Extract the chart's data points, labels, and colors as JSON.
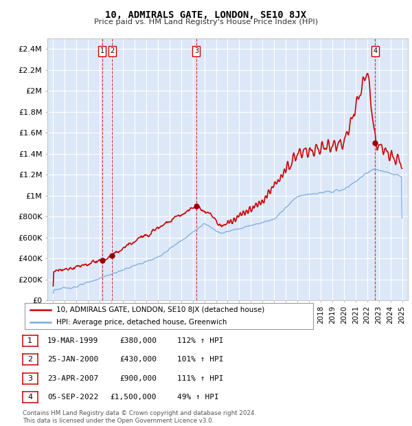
{
  "title": "10, ADMIRALS GATE, LONDON, SE10 8JX",
  "subtitle": "Price paid vs. HM Land Registry's House Price Index (HPI)",
  "footer": "Contains HM Land Registry data © Crown copyright and database right 2024.\nThis data is licensed under the Open Government Licence v3.0.",
  "legend_red": "10, ADMIRALS GATE, LONDON, SE10 8JX (detached house)",
  "legend_blue": "HPI: Average price, detached house, Greenwich",
  "transactions": [
    {
      "num": 1,
      "date": "19-MAR-1999",
      "price": "£380,000",
      "hpi_pct": "112%",
      "arrow": "↑"
    },
    {
      "num": 2,
      "date": "25-JAN-2000",
      "price": "£430,000",
      "hpi_pct": "101%",
      "arrow": "↑"
    },
    {
      "num": 3,
      "date": "23-APR-2007",
      "price": "£900,000",
      "hpi_pct": "111%",
      "arrow": "↑"
    },
    {
      "num": 4,
      "date": "05-SEP-2022",
      "price": "£1,500,000",
      "hpi_pct": "49%",
      "arrow": "↑"
    }
  ],
  "transaction_years": [
    1999.21,
    2000.07,
    2007.31,
    2022.68
  ],
  "transaction_prices_k": [
    380,
    430,
    900,
    1500
  ],
  "yticks_k": [
    0,
    200,
    400,
    600,
    800,
    1000,
    1200,
    1400,
    1600,
    1800,
    2000,
    2200,
    2400
  ],
  "ytick_labels": [
    "£0",
    "£200K",
    "£400K",
    "£600K",
    "£800K",
    "£1M",
    "£1.2M",
    "£1.4M",
    "£1.6M",
    "£1.8M",
    "£2M",
    "£2.2M",
    "£2.4M"
  ],
  "xlim_start": 1994.5,
  "xlim_end": 2025.5,
  "ylim_max": 2500,
  "plot_bg": "#dce8f8",
  "grid_color": "#ffffff",
  "red_color": "#cc0000",
  "blue_color": "#7aaadd",
  "dashed_color": "#cc0000"
}
